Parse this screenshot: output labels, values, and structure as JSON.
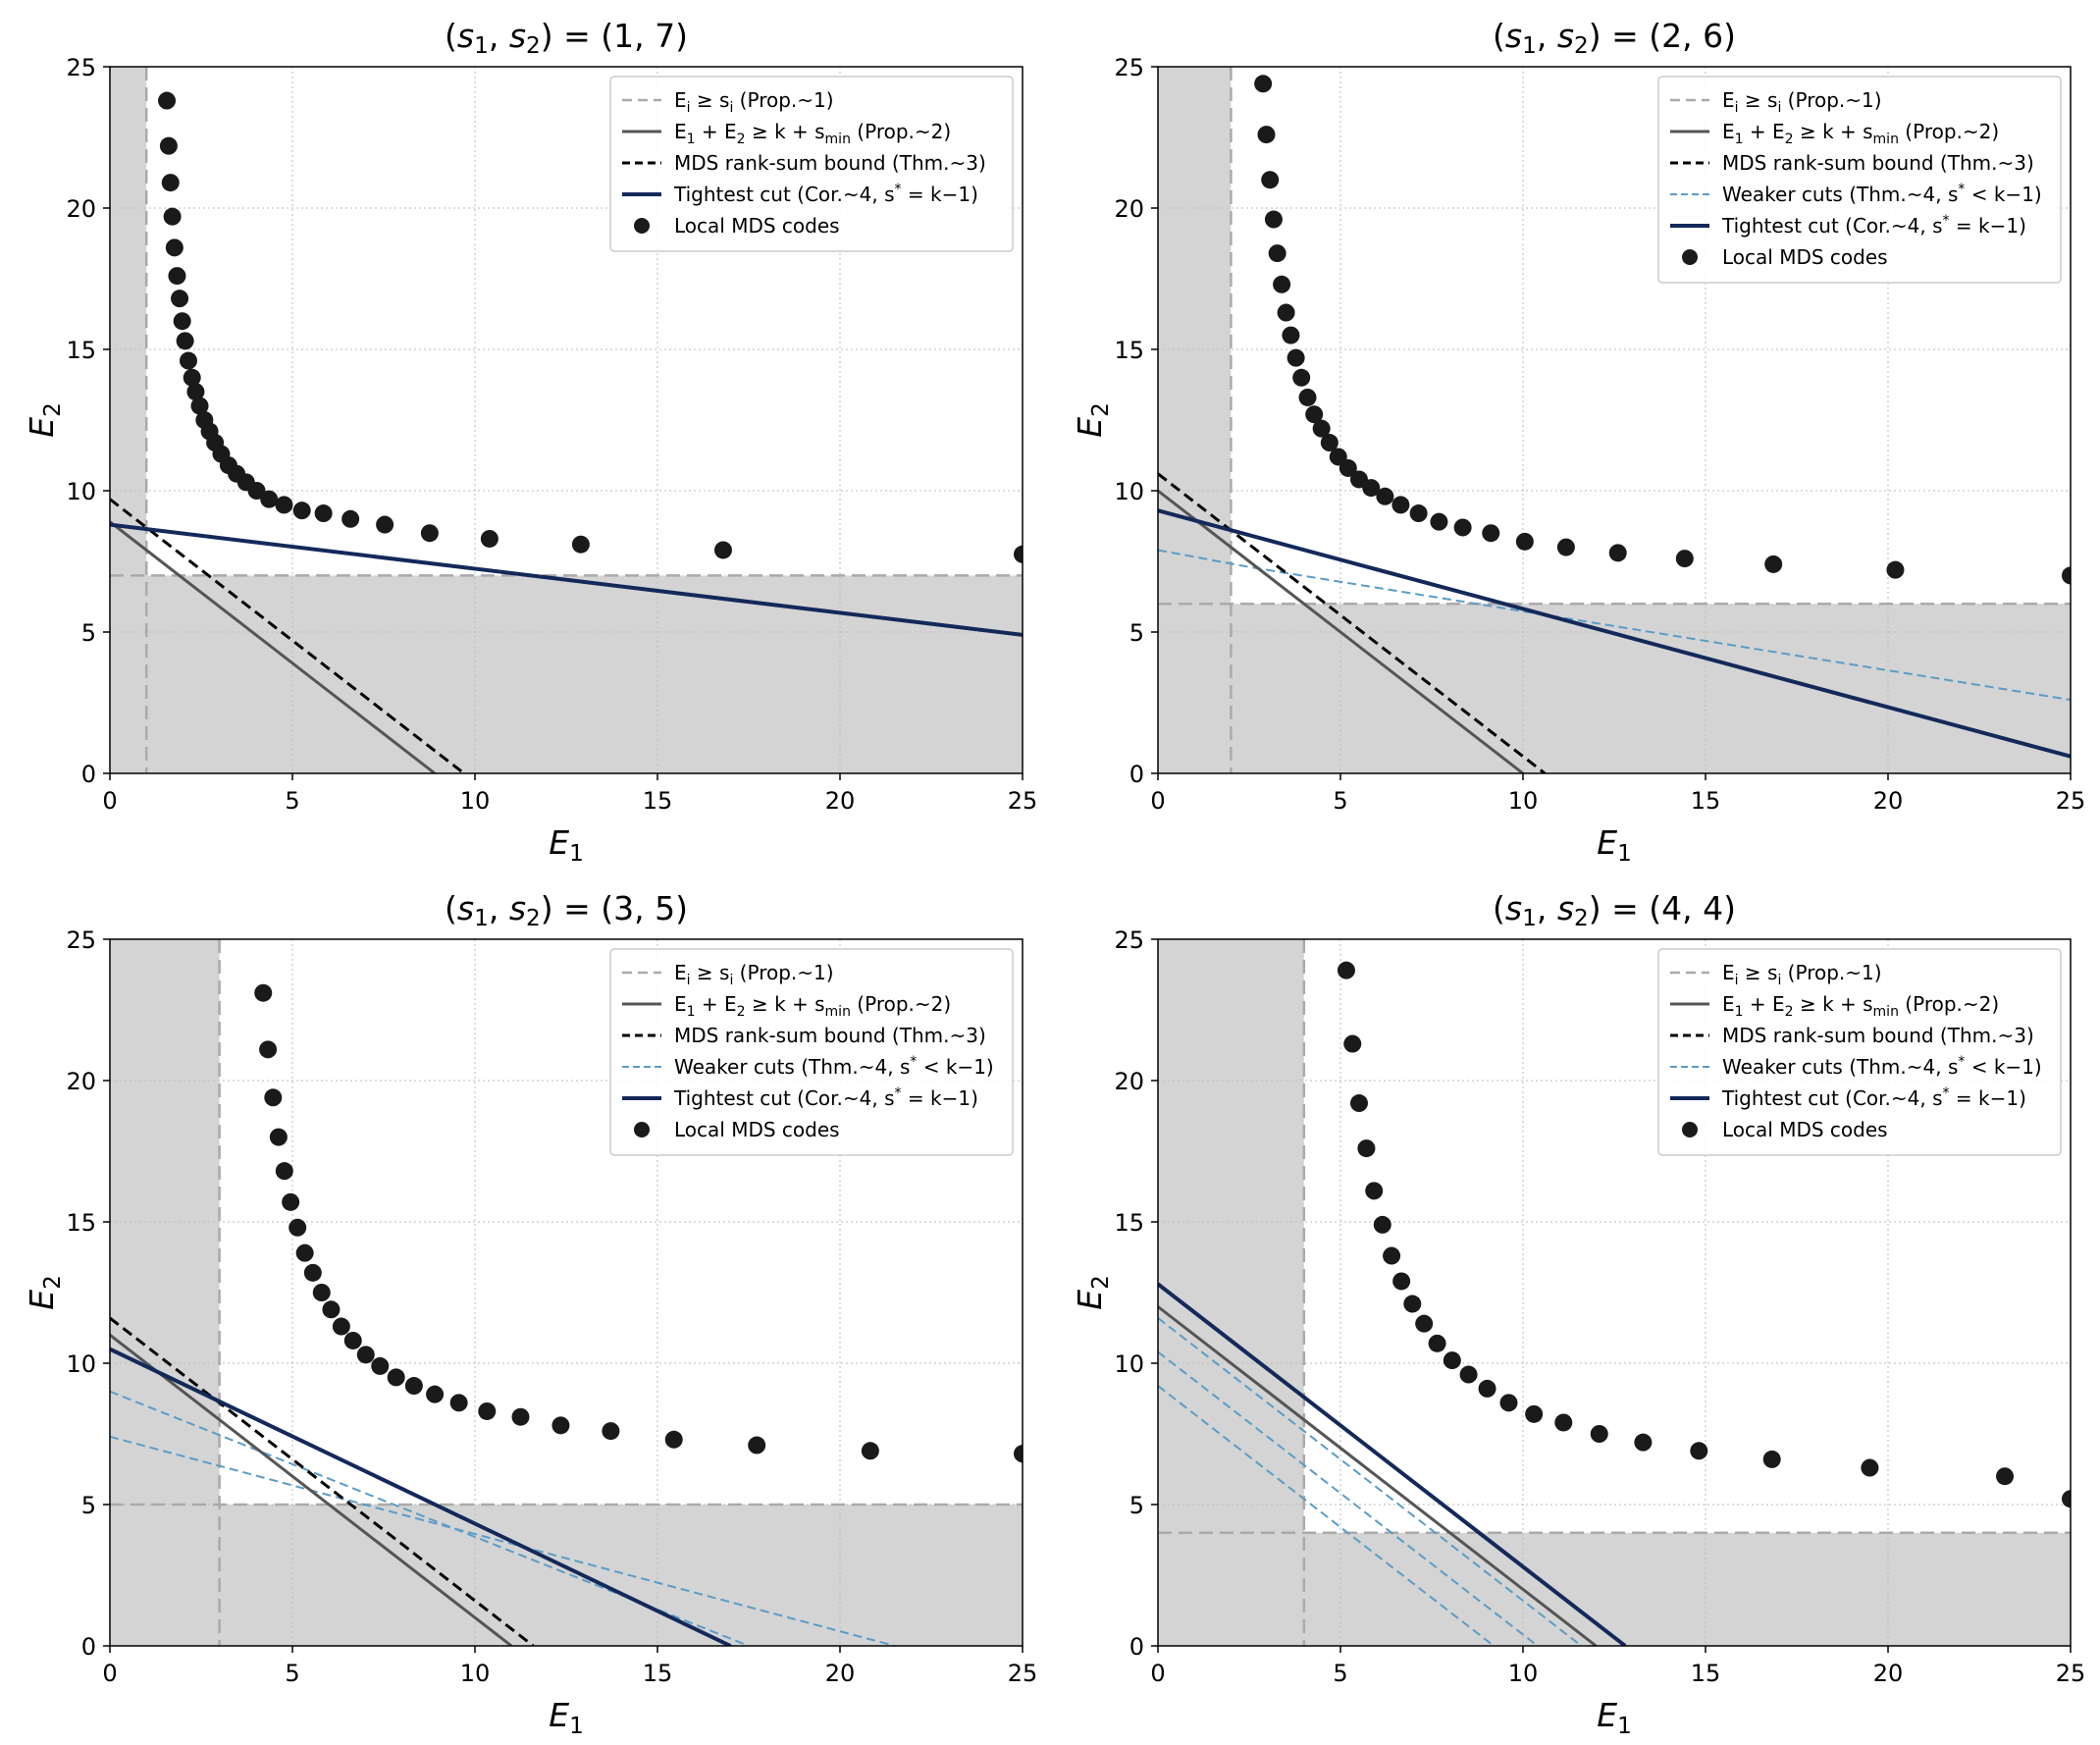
{
  "figure": {
    "type": "2x2 subplots",
    "grid": true,
    "grid_style": "dotted light gray",
    "legend_placement": "top-right"
  },
  "legend_labels": {
    "prop1": "E_i ≥ s_i (Prop.~1)",
    "prop2": "E_1 + E_2 ≥ k + s_min (Prop.~2)",
    "mds": "MDS rank-sum bound (Thm.~3)",
    "weaker": "Weaker cuts (Thm.~4, s* < k−1)",
    "tightest": "Tightest cut (Cor.~4, s* = k−1)",
    "codes": "Local MDS codes"
  },
  "colors": {
    "prop1": "#aaaaaa",
    "prop2": "#555555",
    "mds": "#000000",
    "weaker": "#5b9cc8",
    "tightest": "#13295a",
    "codes": "#1a1a1a",
    "shade": "#d4d4d4"
  },
  "chart_data": [
    {
      "title": "(s1, s2) = (1, 7)",
      "xlabel": "E1",
      "ylabel": "E2",
      "xlim": [
        0,
        25
      ],
      "ylim": [
        0,
        25
      ],
      "xticks": [
        0,
        5,
        10,
        15,
        20,
        25
      ],
      "yticks": [
        0,
        5,
        10,
        15,
        20,
        25
      ],
      "s": [
        1,
        7
      ],
      "prop2_line": [
        [
          0,
          8.9
        ],
        [
          8.9,
          0
        ]
      ],
      "mds_line": [
        [
          0,
          9.7
        ],
        [
          9.7,
          0
        ]
      ],
      "tightest_line": [
        [
          0,
          8.8
        ],
        [
          25,
          4.9
        ]
      ],
      "weaker_lines": [],
      "legend_keys": [
        "prop1",
        "prop2",
        "mds",
        "tightest",
        "codes"
      ],
      "points": [
        [
          1.56,
          23.8
        ],
        [
          1.61,
          22.2
        ],
        [
          1.66,
          20.9
        ],
        [
          1.71,
          19.7
        ],
        [
          1.77,
          18.6
        ],
        [
          1.84,
          17.6
        ],
        [
          1.91,
          16.8
        ],
        [
          1.98,
          16.0
        ],
        [
          2.06,
          15.3
        ],
        [
          2.15,
          14.6
        ],
        [
          2.25,
          14.0
        ],
        [
          2.35,
          13.5
        ],
        [
          2.46,
          13.0
        ],
        [
          2.59,
          12.5
        ],
        [
          2.73,
          12.1
        ],
        [
          2.88,
          11.7
        ],
        [
          3.05,
          11.3
        ],
        [
          3.25,
          10.9
        ],
        [
          3.47,
          10.6
        ],
        [
          3.73,
          10.3
        ],
        [
          4.02,
          10.0
        ],
        [
          4.36,
          9.7
        ],
        [
          4.77,
          9.5
        ],
        [
          5.26,
          9.3
        ],
        [
          5.85,
          9.2
        ],
        [
          6.59,
          9.0
        ],
        [
          7.53,
          8.8
        ],
        [
          8.76,
          8.5
        ],
        [
          10.4,
          8.3
        ],
        [
          12.9,
          8.1
        ],
        [
          16.8,
          7.9
        ],
        [
          25.0,
          7.75
        ]
      ]
    },
    {
      "title": "(s1, s2) = (2, 6)",
      "xlabel": "E1",
      "ylabel": "E2",
      "xlim": [
        0,
        25
      ],
      "ylim": [
        0,
        25
      ],
      "xticks": [
        0,
        5,
        10,
        15,
        20,
        25
      ],
      "yticks": [
        0,
        5,
        10,
        15,
        20,
        25
      ],
      "s": [
        2,
        6
      ],
      "prop2_line": [
        [
          0,
          10.0
        ],
        [
          10.0,
          0
        ]
      ],
      "mds_line": [
        [
          0,
          10.6
        ],
        [
          10.6,
          0
        ]
      ],
      "tightest_line": [
        [
          0,
          9.3
        ],
        [
          25,
          0.6
        ]
      ],
      "weaker_lines": [
        [
          [
            0,
            7.9
          ],
          [
            2.5,
            7.3
          ],
          [
            25,
            2.6
          ]
        ]
      ],
      "legend_keys": [
        "prop1",
        "prop2",
        "mds",
        "weaker",
        "tightest",
        "codes"
      ],
      "points": [
        [
          2.88,
          24.4
        ],
        [
          2.97,
          22.6
        ],
        [
          3.07,
          21.0
        ],
        [
          3.17,
          19.6
        ],
        [
          3.27,
          18.4
        ],
        [
          3.39,
          17.3
        ],
        [
          3.51,
          16.3
        ],
        [
          3.64,
          15.5
        ],
        [
          3.78,
          14.7
        ],
        [
          3.93,
          14.0
        ],
        [
          4.1,
          13.3
        ],
        [
          4.28,
          12.7
        ],
        [
          4.48,
          12.2
        ],
        [
          4.7,
          11.7
        ],
        [
          4.94,
          11.2
        ],
        [
          5.21,
          10.8
        ],
        [
          5.51,
          10.4
        ],
        [
          5.84,
          10.1
        ],
        [
          6.22,
          9.8
        ],
        [
          6.65,
          9.5
        ],
        [
          7.14,
          9.2
        ],
        [
          7.7,
          8.9
        ],
        [
          8.35,
          8.7
        ],
        [
          9.12,
          8.5
        ],
        [
          10.05,
          8.2
        ],
        [
          11.18,
          8.0
        ],
        [
          12.6,
          7.8
        ],
        [
          14.43,
          7.6
        ],
        [
          16.86,
          7.4
        ],
        [
          20.2,
          7.2
        ],
        [
          25.0,
          7.0
        ]
      ]
    },
    {
      "title": "(s1, s2) = (3, 5)",
      "xlabel": "E1",
      "ylabel": "E2",
      "xlim": [
        0,
        25
      ],
      "ylim": [
        0,
        25
      ],
      "xticks": [
        0,
        5,
        10,
        15,
        20,
        25
      ],
      "yticks": [
        0,
        5,
        10,
        15,
        20,
        25
      ],
      "s": [
        3,
        5
      ],
      "prop2_line": [
        [
          0,
          11.0
        ],
        [
          11.0,
          0
        ]
      ],
      "mds_line": [
        [
          0,
          11.6
        ],
        [
          11.6,
          0
        ]
      ],
      "tightest_line": [
        [
          0,
          10.5
        ],
        [
          17.0,
          0
        ]
      ],
      "weaker_lines": [
        [
          [
            0,
            9.0
          ],
          [
            17.5,
            0
          ]
        ],
        [
          [
            0,
            7.4
          ],
          [
            21.5,
            0
          ]
        ]
      ],
      "legend_keys": [
        "prop1",
        "prop2",
        "mds",
        "weaker",
        "tightest",
        "codes"
      ],
      "points": [
        [
          4.2,
          23.1
        ],
        [
          4.33,
          21.1
        ],
        [
          4.47,
          19.4
        ],
        [
          4.62,
          18.0
        ],
        [
          4.78,
          16.8
        ],
        [
          4.95,
          15.7
        ],
        [
          5.14,
          14.8
        ],
        [
          5.34,
          13.9
        ],
        [
          5.56,
          13.2
        ],
        [
          5.8,
          12.5
        ],
        [
          6.06,
          11.9
        ],
        [
          6.34,
          11.3
        ],
        [
          6.66,
          10.8
        ],
        [
          7.01,
          10.3
        ],
        [
          7.4,
          9.9
        ],
        [
          7.84,
          9.5
        ],
        [
          8.33,
          9.2
        ],
        [
          8.9,
          8.9
        ],
        [
          9.56,
          8.6
        ],
        [
          10.33,
          8.3
        ],
        [
          11.25,
          8.1
        ],
        [
          12.35,
          7.8
        ],
        [
          13.72,
          7.6
        ],
        [
          15.45,
          7.3
        ],
        [
          17.72,
          7.1
        ],
        [
          20.83,
          6.9
        ],
        [
          25.0,
          6.8
        ]
      ]
    },
    {
      "title": "(s1, s2) = (4, 4)",
      "xlabel": "E1",
      "ylabel": "E2",
      "xlim": [
        0,
        25
      ],
      "ylim": [
        0,
        25
      ],
      "xticks": [
        0,
        5,
        10,
        15,
        20,
        25
      ],
      "yticks": [
        0,
        5,
        10,
        15,
        20,
        25
      ],
      "s": [
        4,
        4
      ],
      "prop2_line": [
        [
          0,
          12.0
        ],
        [
          12.0,
          0
        ]
      ],
      "mds_line": [],
      "tightest_line": [
        [
          0,
          12.8
        ],
        [
          12.8,
          0
        ]
      ],
      "weaker_lines": [
        [
          [
            0,
            11.6
          ],
          [
            11.6,
            0
          ]
        ],
        [
          [
            0,
            10.4
          ],
          [
            10.4,
            0
          ]
        ],
        [
          [
            0,
            9.2
          ],
          [
            9.2,
            0
          ]
        ]
      ],
      "legend_keys": [
        "prop1",
        "prop2",
        "mds",
        "weaker",
        "tightest",
        "codes"
      ],
      "points": [
        [
          5.16,
          23.9
        ],
        [
          5.33,
          21.3
        ],
        [
          5.51,
          19.2
        ],
        [
          5.71,
          17.6
        ],
        [
          5.92,
          16.1
        ],
        [
          6.15,
          14.9
        ],
        [
          6.4,
          13.8
        ],
        [
          6.67,
          12.9
        ],
        [
          6.97,
          12.1
        ],
        [
          7.29,
          11.4
        ],
        [
          7.65,
          10.7
        ],
        [
          8.06,
          10.1
        ],
        [
          8.51,
          9.6
        ],
        [
          9.02,
          9.1
        ],
        [
          9.61,
          8.6
        ],
        [
          10.3,
          8.2
        ],
        [
          11.11,
          7.9
        ],
        [
          12.09,
          7.5
        ],
        [
          13.29,
          7.2
        ],
        [
          14.82,
          6.9
        ],
        [
          16.82,
          6.6
        ],
        [
          19.5,
          6.3
        ],
        [
          23.2,
          6.0
        ],
        [
          25.0,
          5.2
        ]
      ]
    }
  ]
}
